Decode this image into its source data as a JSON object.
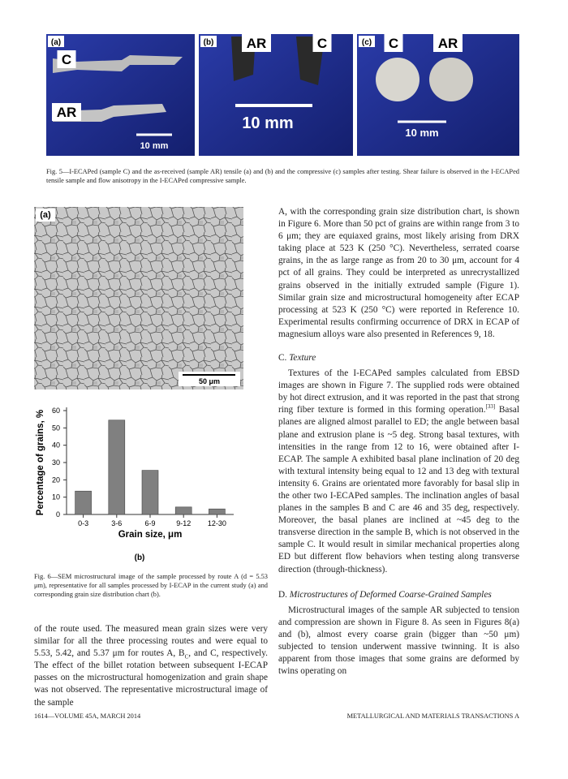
{
  "figure5": {
    "panels": [
      {
        "label": "(a)",
        "samples": [
          "C",
          "AR"
        ],
        "scale": "10 mm"
      },
      {
        "label": "(b)",
        "samples": [
          "AR",
          "C"
        ],
        "scale": "10 mm"
      },
      {
        "label": "(c)",
        "samples": [
          "C",
          "AR"
        ],
        "scale": "10 mm"
      }
    ],
    "caption": "Fig. 5—I-ECAPed (sample C) and the as-received (sample AR) tensile (a) and (b) and the compressive (c) samples after testing. Shear failure is observed in the I-ECAPed tensile sample and flow anisotropy in the I-ECAPed compressive sample."
  },
  "figure6": {
    "image_label": "(a)",
    "scale_bar": "50 μm",
    "chart_label": "(b)",
    "caption": "Fig. 6—SEM microstructural image of the sample processed by route A (d = 5.53 μm), representative for all samples processed by I-ECAP in the current study (a) and corresponding grain size distribution chart (b).",
    "chart_data": {
      "type": "bar",
      "ylabel": "Percentage of grains, %",
      "xlabel": "Grain size, μm",
      "categories": [
        "0-3",
        "3-6",
        "6-9",
        "9-12",
        "12-30"
      ],
      "values": [
        13.5,
        54.5,
        25.5,
        4.3,
        3.2
      ],
      "color": "#808080",
      "ylim": [
        0,
        60
      ],
      "yticks": [
        0,
        10,
        20,
        30,
        40,
        50,
        60
      ],
      "grid": false
    }
  },
  "left_column": {
    "paragraph": [
      "of the route used. The measured mean grain sizes were very similar for all the three processing routes and were equal to 5.53, 5.42, and 5.37 μm for routes A, B",
      "C",
      ", and C, respectively. The effect of the billet rotation between subsequent I-ECAP passes on the microstructural homogenization and grain shape was not observed. The representative microstructural image of the sample"
    ]
  },
  "right_column": {
    "paragraph_1": "A, with the corresponding grain size distribution chart, is shown in Figure 6. More than 50 pct of grains are within range from 3 to 6 μm; they are equiaxed grains, most likely arising from DRX taking place at 523 K (250 °C). Nevertheless, serrated coarse grains, in the as large range as from 20 to 30 μm, account for 4 pct of all grains. They could be interpreted as unrecrystallized grains observed in the initially extruded sample (Figure 1). Similar grain size and microstructural homogeneity after ECAP processing at 523 K (250 °C) were reported in Reference 10. Experimental results confirming occurrence of DRX in ECAP of magnesium alloys ware also presented in References 9, 18.",
    "section_c": {
      "number": "C.",
      "title": "Texture",
      "paragraph": [
        "Textures of the I-ECAPed samples calculated from EBSD images are shown in Figure 7. The supplied rods were obtained by hot direct extrusion, and it was reported in the past that strong ring fiber texture is formed in this forming operation.",
        "[33]",
        " Basal planes are aligned almost parallel to ED; the angle between basal plane and extrusion plane is ~5 deg. Strong basal textures, with intensities in the range from 12 to 16, were obtained after I-ECAP. The sample A exhibited basal plane inclination of 20 deg with textural intensity being equal to 12 and 13 deg with textural intensity 6. Grains are orientated more favorably for basal slip in the other two I-ECAPed samples. The inclination angles of basal planes in the samples B and C are 46 and 35 deg, respectively. Moreover, the basal planes are inclined at ~45 deg to the transverse direction in the sample B, which is not observed in the sample C. It would result in similar mechanical properties along ED but different flow behaviors when testing along transverse direction (through-thickness)."
      ]
    },
    "section_d": {
      "number": "D.",
      "title": "Microstructures of Deformed Coarse-Grained Samples",
      "paragraph": "Microstructural images of the sample AR subjected to tension and compression are shown in Figure 8. As seen in Figures 8(a) and (b), almost every coarse grain (bigger than ~50 μm) subjected to tension underwent massive twinning. It is also apparent from those images that some grains are deformed by twins operating on"
    }
  },
  "footer": {
    "left": "1614—VOLUME 45A, MARCH 2014",
    "right": "METALLURGICAL AND MATERIALS TRANSACTIONS A"
  }
}
